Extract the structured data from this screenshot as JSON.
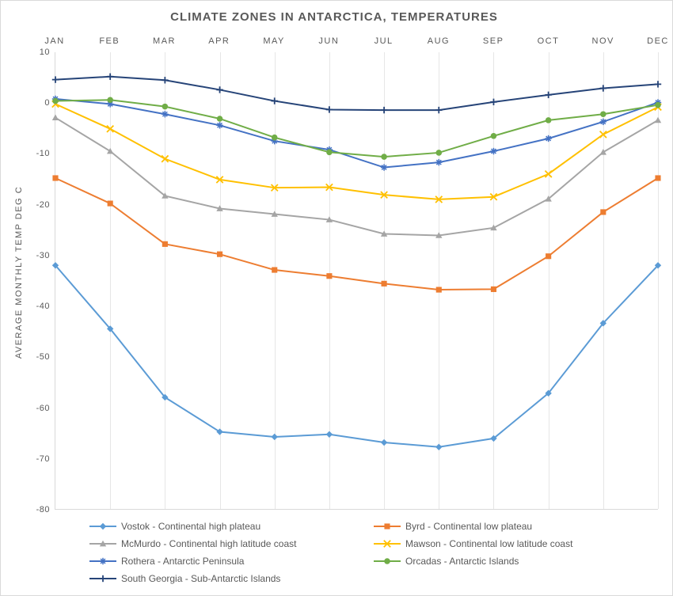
{
  "title": "CLIMATE ZONES IN ANTARCTICA, TEMPERATURES",
  "ylabel": "AVERAGE MONTHLY TEMP  DEG C",
  "categories": [
    "JAN",
    "FEB",
    "MAR",
    "APR",
    "MAY",
    "JUN",
    "JUL",
    "AUG",
    "SEP",
    "OCT",
    "NOV",
    "DEC"
  ],
  "ylim": [
    -80,
    10
  ],
  "ytick_step": 10,
  "background_color": "#ffffff",
  "grid_color": "#e6e6e6",
  "axis_text_color": "#595959",
  "title_fontsize": 15,
  "label_fontsize": 11,
  "series": [
    {
      "name": "Vostok - Continental high plateau",
      "color": "#5b9bd5",
      "marker": "diamond",
      "values": [
        -32,
        -44.5,
        -58,
        -64.8,
        -65.8,
        -65.3,
        -66.9,
        -67.8,
        -66.1,
        -57.2,
        -43.4,
        -32
      ]
    },
    {
      "name": "Byrd - Continental low plateau",
      "color": "#ed7d31",
      "marker": "square",
      "values": [
        -14.8,
        -19.8,
        -27.8,
        -29.8,
        -32.9,
        -34.1,
        -35.6,
        -36.8,
        -36.7,
        -30.2,
        -21.5,
        -14.8
      ]
    },
    {
      "name": "McMurdo - Continental high latitude coast",
      "color": "#a5a5a5",
      "marker": "triangle",
      "values": [
        -2.9,
        -9.5,
        -18.3,
        -20.8,
        -21.9,
        -23,
        -25.8,
        -26.1,
        -24.6,
        -18.9,
        -9.7,
        -3.4
      ]
    },
    {
      "name": "Mawson - Continental low latitude coast",
      "color": "#ffc000",
      "marker": "x",
      "values": [
        -0.2,
        -5.1,
        -11,
        -15.1,
        -16.7,
        -16.6,
        -18.1,
        -19,
        -18.5,
        -14,
        -6.2,
        -0.8
      ]
    },
    {
      "name": "Rothera - Antarctic Peninsula",
      "color": "#4472c4",
      "marker": "star",
      "values": [
        0.8,
        -0.2,
        -2.2,
        -4.4,
        -7.5,
        -9.2,
        -12.7,
        -11.7,
        -9.5,
        -7,
        -3.7,
        0.1
      ]
    },
    {
      "name": "Orcadas - Antarctic Islands",
      "color": "#70ad47",
      "marker": "circle",
      "values": [
        0.4,
        0.6,
        -0.7,
        -3.1,
        -6.8,
        -9.7,
        -10.6,
        -9.8,
        -6.5,
        -3.4,
        -2.2,
        -0.4
      ]
    },
    {
      "name": "South Georgia - Sub-Antarctic Islands",
      "color": "#264478",
      "marker": "plus",
      "values": [
        4.6,
        5.2,
        4.5,
        2.6,
        0.4,
        -1.3,
        -1.4,
        -1.4,
        0.2,
        1.6,
        2.9,
        3.7
      ]
    }
  ]
}
